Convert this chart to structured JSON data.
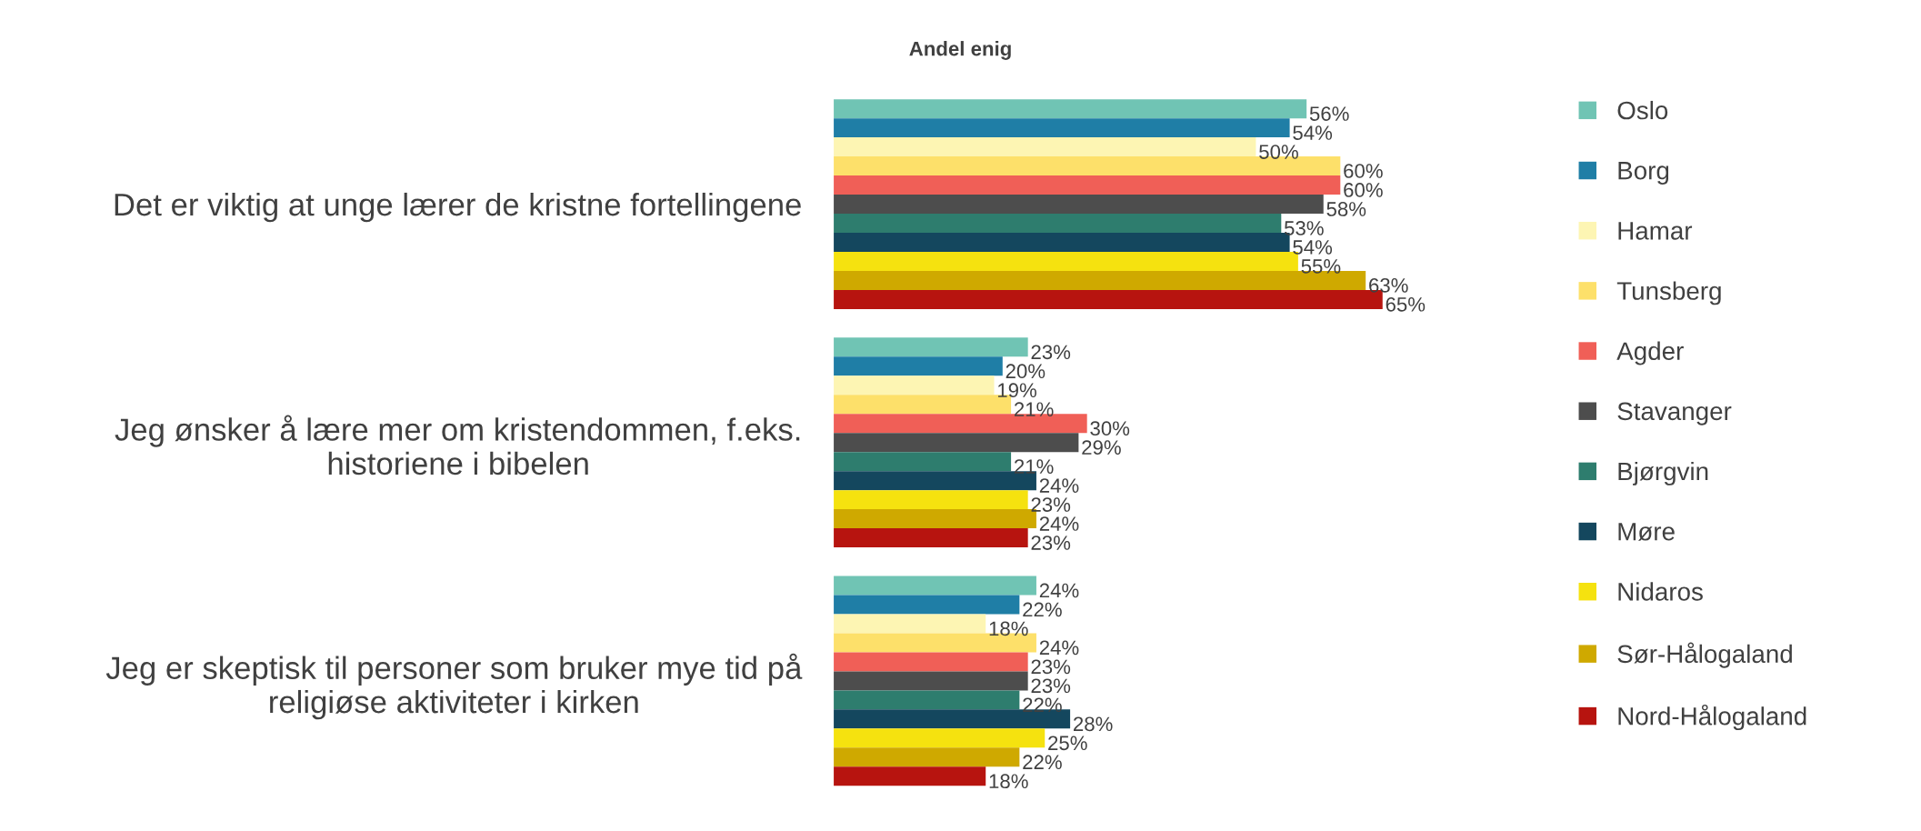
{
  "chart_data": {
    "type": "bar",
    "orientation": "horizontal",
    "title": "Andel enig",
    "categories": [
      "Det er viktig at unge lærer de kristne fortellingene",
      "Jeg ønsker å lære mer om kristendommen, f.eks. historiene i bibelen",
      "Jeg er skeptisk til personer som bruker mye tid på religiøse aktiviteter i kirken"
    ],
    "series": [
      {
        "name": "Oslo",
        "color": "#70c4b4",
        "values": [
          56,
          23,
          24
        ],
        "value_labels": [
          "56%",
          "23%",
          "24%"
        ]
      },
      {
        "name": "Borg",
        "color": "#1f7ea6",
        "values": [
          54,
          20,
          22
        ],
        "value_labels": [
          "54%",
          "20%",
          "22%"
        ]
      },
      {
        "name": "Hamar",
        "color": "#fdf5b3",
        "values": [
          50,
          19,
          18
        ],
        "value_labels": [
          "50%",
          "19%",
          "18%"
        ]
      },
      {
        "name": "Tunsberg",
        "color": "#fde06a",
        "values": [
          60,
          21,
          24
        ],
        "value_labels": [
          "60%",
          "21%",
          "24%"
        ]
      },
      {
        "name": "Agder",
        "color": "#f05f57",
        "values": [
          60,
          30,
          23
        ],
        "value_labels": [
          "60%",
          "30%",
          "23%"
        ]
      },
      {
        "name": "Stavanger",
        "color": "#4d4d4d",
        "values": [
          58,
          29,
          23
        ],
        "value_labels": [
          "58%",
          "29%",
          "23%"
        ]
      },
      {
        "name": "Bjørgvin",
        "color": "#2e7d6e",
        "values": [
          53,
          21,
          22
        ],
        "value_labels": [
          "53%",
          "21%",
          "22%"
        ]
      },
      {
        "name": "Møre",
        "color": "#14475e",
        "values": [
          54,
          24,
          28
        ],
        "value_labels": [
          "54%",
          "24%",
          "28%"
        ]
      },
      {
        "name": "Nidaros",
        "color": "#f5e20f",
        "values": [
          55,
          23,
          25
        ],
        "value_labels": [
          "55%",
          "23%",
          "25%"
        ]
      },
      {
        "name": "Sør-Hålogaland",
        "color": "#cfa900",
        "values": [
          63,
          24,
          22
        ],
        "value_labels": [
          "63%",
          "24%",
          "22%"
        ]
      },
      {
        "name": "Nord-Hålogaland",
        "color": "#b7140f",
        "values": [
          65,
          23,
          18
        ],
        "value_labels": [
          "65%",
          "23%",
          "18%"
        ]
      }
    ],
    "grid": false,
    "legend": "right",
    "tick_labels": "y"
  }
}
